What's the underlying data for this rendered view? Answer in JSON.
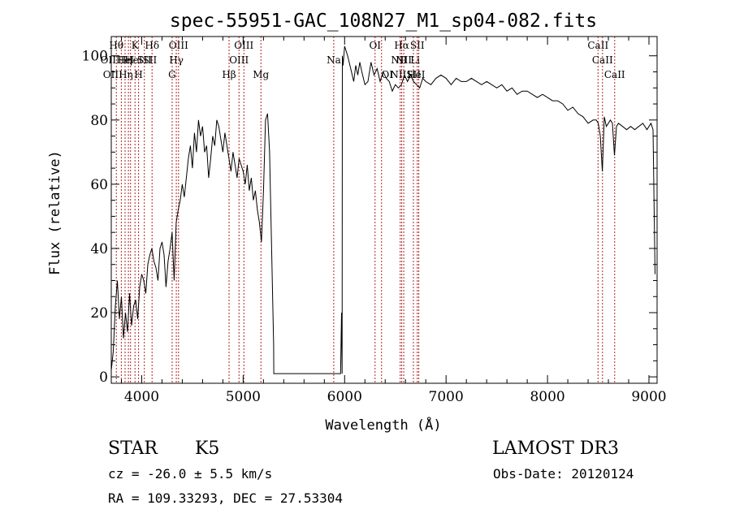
{
  "chart_data": {
    "type": "line",
    "title": "spec-55951-GAC_108N27_M1_sp04-082.fits",
    "xlabel": "Wavelength (Å)",
    "ylabel": "Flux (relative)",
    "xlim": [
      3700,
      9080
    ],
    "ylim": [
      -2,
      106
    ],
    "x_ticks": [
      4000,
      5000,
      6000,
      7000,
      8000,
      9000
    ],
    "y_ticks": [
      0,
      20,
      40,
      60,
      80,
      100
    ],
    "grid": false,
    "series": [
      {
        "x": [
          3700,
          3720,
          3740,
          3760,
          3780,
          3800,
          3820,
          3840,
          3860,
          3880,
          3900,
          3920,
          3940,
          3960,
          3980,
          4000,
          4020,
          4040,
          4060,
          4080,
          4100,
          4120,
          4140,
          4160,
          4180,
          4200,
          4220,
          4240,
          4260,
          4280,
          4300,
          4320,
          4340,
          4360,
          4380,
          4400,
          4420,
          4440,
          4460,
          4480,
          4500,
          4520,
          4540,
          4560,
          4580,
          4600,
          4620,
          4640,
          4660,
          4680,
          4700,
          4720,
          4740,
          4760,
          4780,
          4800,
          4820,
          4840,
          4860,
          4880,
          4900,
          4920,
          4940,
          4960,
          4980,
          5000,
          5020,
          5040,
          5060,
          5080,
          5100,
          5120,
          5140,
          5160,
          5180,
          5200,
          5220,
          5240,
          5260,
          5280,
          5300,
          5302,
          5310,
          5400,
          5600,
          5800,
          5900,
          5960,
          5970,
          5975,
          5978,
          5985,
          6000,
          6030,
          6060,
          6090,
          6110,
          6130,
          6150,
          6170,
          6200,
          6230,
          6260,
          6290,
          6320,
          6350,
          6380,
          6410,
          6440,
          6470,
          6500,
          6530,
          6560,
          6590,
          6620,
          6650,
          6680,
          6710,
          6740,
          6770,
          6800,
          6850,
          6900,
          6950,
          7000,
          7050,
          7100,
          7150,
          7200,
          7250,
          7300,
          7350,
          7400,
          7450,
          7500,
          7550,
          7600,
          7650,
          7700,
          7750,
          7800,
          7850,
          7900,
          7950,
          8000,
          8050,
          8100,
          8150,
          8200,
          8250,
          8300,
          8350,
          8400,
          8450,
          8480,
          8500,
          8520,
          8540,
          8560,
          8580,
          8600,
          8620,
          8640,
          8660,
          8680,
          8700,
          8740,
          8780,
          8820,
          8860,
          8900,
          8940,
          8980,
          9000,
          9020,
          9040,
          9060
        ],
        "y": [
          2,
          8,
          22,
          30,
          18,
          25,
          12,
          20,
          14,
          26,
          16,
          22,
          24,
          18,
          28,
          32,
          30,
          26,
          35,
          38,
          40,
          36,
          34,
          30,
          40,
          42,
          38,
          28,
          36,
          40,
          45,
          30,
          48,
          52,
          55,
          60,
          56,
          62,
          68,
          72,
          65,
          76,
          70,
          80,
          75,
          78,
          70,
          72,
          62,
          68,
          75,
          72,
          80,
          78,
          74,
          70,
          76,
          72,
          68,
          64,
          70,
          66,
          62,
          68,
          66,
          64,
          60,
          66,
          58,
          62,
          55,
          58,
          52,
          48,
          42,
          58,
          80,
          82,
          70,
          40,
          10,
          1,
          1,
          1,
          1,
          1,
          1,
          1,
          20,
          1,
          100,
          97,
          103,
          100,
          96,
          92,
          97,
          94,
          98,
          95,
          91,
          92,
          98,
          94,
          96,
          92,
          95,
          93,
          92,
          89,
          91,
          90,
          91,
          94,
          92,
          94,
          92,
          91,
          90,
          93,
          92,
          91,
          93,
          94,
          93,
          91,
          93,
          92,
          92,
          93,
          92,
          91,
          92,
          91,
          90,
          91,
          89,
          90,
          88,
          89,
          89,
          88,
          87,
          88,
          87,
          86,
          86,
          85,
          83,
          84,
          82,
          81,
          79,
          80,
          80,
          79,
          75,
          64,
          81,
          78,
          79,
          80,
          79,
          69,
          78,
          79,
          78,
          77,
          78,
          77,
          78,
          79,
          77,
          78,
          79,
          77,
          32
        ]
      }
    ],
    "lines": [
      {
        "x": 3750,
        "tier": 0,
        "label": "Hθ"
      },
      {
        "x": 3799,
        "tier": 0,
        "label": ""
      },
      {
        "x": 3836,
        "tier": 1,
        "label": "Hη"
      },
      {
        "x": 3869,
        "tier": 1,
        "label": ""
      },
      {
        "x": 3890,
        "tier": 1,
        "label": ""
      },
      {
        "x": 3934,
        "tier": 0,
        "label": "K"
      },
      {
        "x": 3969,
        "tier": 2,
        "label": "H"
      },
      {
        "x": 4026,
        "tier": 1,
        "label": "SII"
      },
      {
        "x": 4102,
        "tier": 0,
        "label": "Hδ"
      },
      {
        "x": 4300,
        "tier": 2,
        "label": "G"
      },
      {
        "x": 4341,
        "tier": 1,
        "label": "Hγ"
      },
      {
        "x": 4363,
        "tier": 0,
        "label": "OIII"
      },
      {
        "x": 4861,
        "tier": 2,
        "label": "Hβ"
      },
      {
        "x": 4959,
        "tier": 1,
        "label": "OIII"
      },
      {
        "x": 5007,
        "tier": 0,
        "label": "OIII"
      },
      {
        "x": 5175,
        "tier": 2,
        "label": "Mg"
      },
      {
        "x": 5893,
        "tier": 1,
        "label": "Na"
      },
      {
        "x": 6300,
        "tier": 0,
        "label": "OI"
      },
      {
        "x": 6364,
        "tier": 2,
        "label": ""
      },
      {
        "x": 6548,
        "tier": 2,
        "label": ""
      },
      {
        "x": 6563,
        "tier": 0,
        "label": "Hα"
      },
      {
        "x": 6583,
        "tier": 1,
        "label": "NII"
      },
      {
        "x": 6678,
        "tier": 2,
        "label": ""
      },
      {
        "x": 6716,
        "tier": 0,
        "label": "SII"
      },
      {
        "x": 6731,
        "tier": 2,
        "label": ""
      },
      {
        "x": 8498,
        "tier": 0,
        "label": "CaII"
      },
      {
        "x": 8542,
        "tier": 1,
        "label": "CaII"
      },
      {
        "x": 8662,
        "tier": 2,
        "label": "CaII"
      }
    ],
    "overlap_labels": [
      {
        "tier": 1,
        "text": "OIIHeI"
      },
      {
        "tier": 2,
        "text": "OIIHη"
      },
      {
        "tier": 1,
        "text": "HeISII"
      },
      {
        "tier": 1,
        "text": "NII Li"
      },
      {
        "tier": 2,
        "text": "NIISII"
      },
      {
        "tier": 2,
        "text": "OI"
      },
      {
        "tier": 2,
        "text": "HeI"
      }
    ],
    "line_color": "#b22222"
  },
  "info": {
    "class": "STAR",
    "subclass": "K5",
    "survey": "LAMOST DR3",
    "redshift": "cz = -26.0 ± 5.5 km/s",
    "obsdate": "Obs-Date: 20120124",
    "coords": "RA = 109.33293, DEC =  27.53304"
  }
}
